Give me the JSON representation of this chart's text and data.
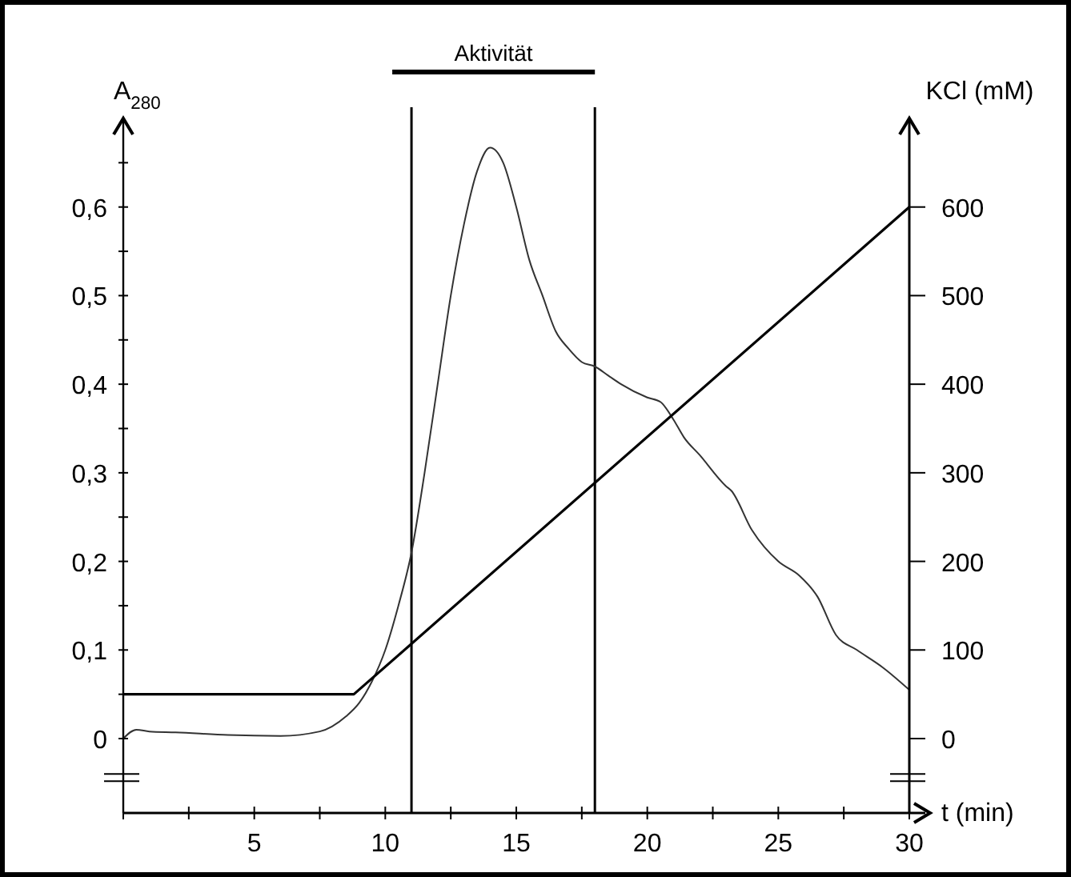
{
  "chart_data": {
    "type": "line",
    "xlabel": "t (min)",
    "ylabel": "A$_{280}$",
    "y2label": "KCl (mM)",
    "annotations": [
      "Aktivität"
    ],
    "xlim": [
      0,
      30
    ],
    "xticks": [
      {
        "value": 0,
        "label": null
      },
      {
        "value": 2.5,
        "label": null
      },
      5,
      {
        "value": 7.5,
        "label": null
      },
      10,
      {
        "value": 12.5,
        "label": null
      },
      15,
      {
        "value": 17.5,
        "label": null
      },
      20,
      {
        "value": 22.5,
        "label": null
      },
      25,
      {
        "value": 27.5,
        "label": null
      },
      30
    ],
    "ylim": [
      -0.084,
      0.7
    ],
    "yticks": [
      0,
      {
        "value": 0.05,
        "label": null
      },
      {
        "value": 0.1,
        "label": "0,1"
      },
      {
        "value": 0.15,
        "label": null
      },
      {
        "value": 0.2,
        "label": "0,2"
      },
      {
        "value": 0.25,
        "label": null
      },
      {
        "value": 0.3,
        "label": "0,3"
      },
      {
        "value": 0.35,
        "label": null
      },
      {
        "value": 0.4,
        "label": "0,4"
      },
      {
        "value": 0.45,
        "label": null
      },
      {
        "value": 0.5,
        "label": "0,5"
      },
      {
        "value": 0.55,
        "label": null
      },
      {
        "value": 0.6,
        "label": "0,6"
      },
      {
        "value": 0.65,
        "label": null
      }
    ],
    "y2lim": [
      -84,
      700
    ],
    "y2ticks": [
      0,
      100,
      200,
      300,
      400,
      500,
      600
    ],
    "grid": false,
    "line_style": "solid",
    "ref_lines": [
      {
        "axis": "x",
        "value": 11,
        "color": "#000000"
      },
      {
        "axis": "x",
        "value": 18,
        "color": "#000000"
      }
    ],
    "series": [
      {
        "color": "#333333",
        "x": [
          0,
          0.5,
          1,
          2,
          4,
          6,
          7.5,
          8.5,
          9,
          9.5,
          10,
          10.5,
          11,
          11.5,
          12,
          12.5,
          13,
          13.5,
          14,
          14.5,
          15,
          15.5,
          16,
          16.5,
          17,
          17.5,
          18,
          18.5,
          19,
          20,
          20.5,
          21,
          21.4,
          22,
          23,
          23.2,
          24,
          25,
          25.8,
          26.5,
          27.2,
          28,
          29,
          30
        ],
        "values": [
          0,
          0.01,
          0.008,
          0.007,
          0.004,
          0.003,
          0.008,
          0.025,
          0.04,
          0.065,
          0.1,
          0.15,
          0.21,
          0.3,
          0.4,
          0.5,
          0.58,
          0.64,
          0.667,
          0.65,
          0.6,
          0.54,
          0.5,
          0.46,
          0.44,
          0.425,
          0.42,
          0.41,
          0.4,
          0.385,
          0.38,
          0.36,
          0.34,
          0.32,
          0.285,
          0.28,
          0.235,
          0.2,
          0.184,
          0.16,
          0.117,
          0.1,
          0.08,
          0.055
        ]
      },
      {
        "color": "#000000",
        "axis": "y2",
        "x": [
          0,
          8.8,
          30
        ],
        "values": [
          50,
          50,
          600
        ]
      }
    ]
  }
}
